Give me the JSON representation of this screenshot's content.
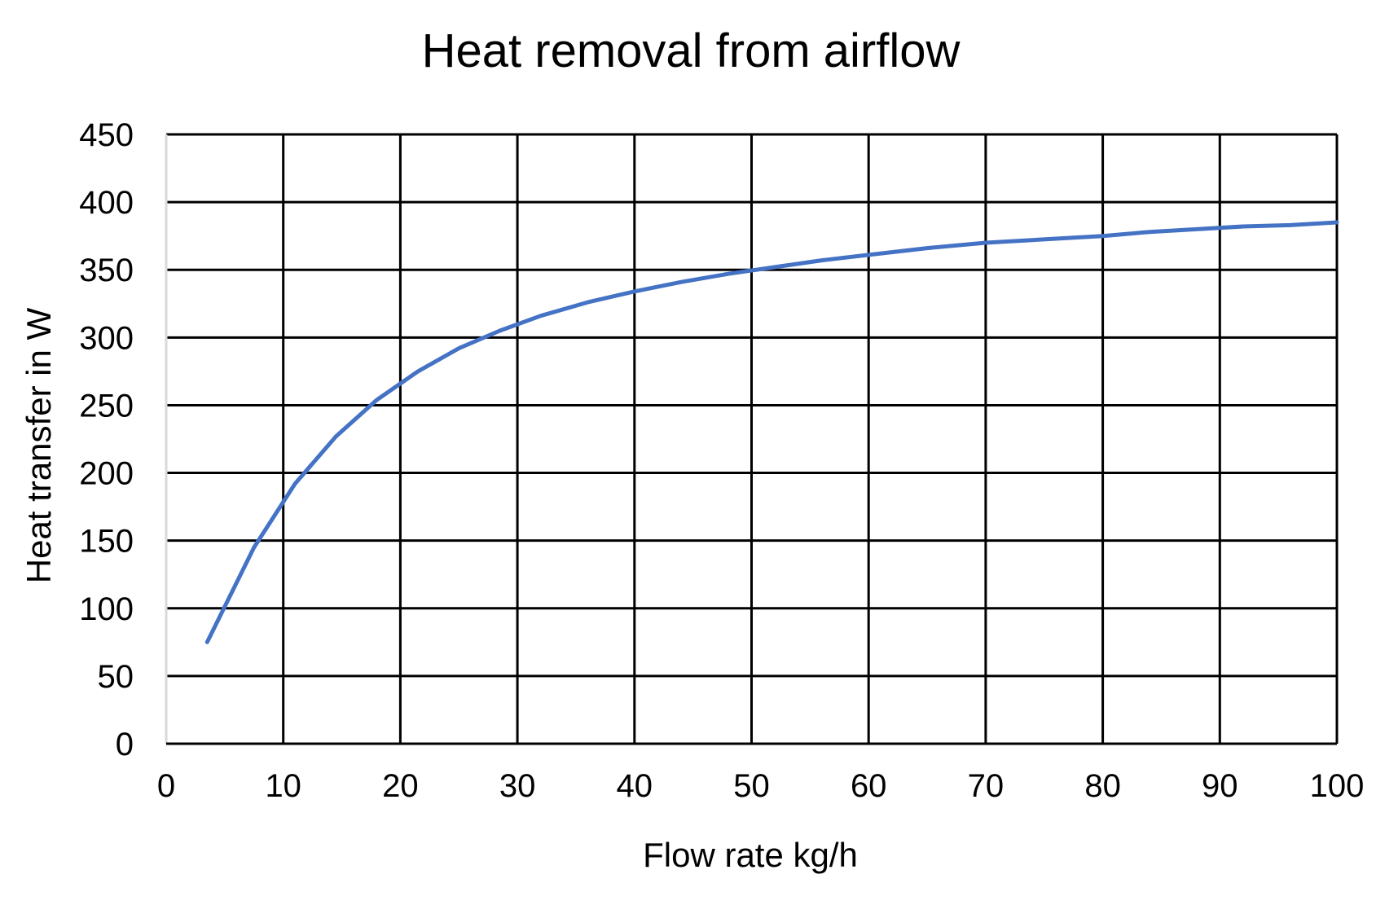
{
  "chart_data": {
    "type": "line",
    "title": "Heat removal from airflow",
    "xlabel": "Flow rate kg/h",
    "ylabel": "Heat transfer in W",
    "xlim": [
      0,
      100
    ],
    "ylim": [
      0,
      450
    ],
    "x_ticks": [
      "0",
      "10",
      "20",
      "30",
      "40",
      "50",
      "60",
      "70",
      "80",
      "90",
      "100"
    ],
    "y_ticks": [
      "0",
      "50",
      "100",
      "150",
      "200",
      "250",
      "300",
      "350",
      "400",
      "450"
    ],
    "grid": true,
    "legend": "none",
    "series": [
      {
        "color": "#4472C4",
        "x": [
          3.5,
          7.5,
          11,
          14.5,
          18,
          21.5,
          25,
          28.5,
          32,
          36,
          40,
          44,
          48,
          52,
          56,
          60,
          65,
          70,
          76,
          80,
          84,
          88,
          92,
          96,
          100
        ],
        "y": [
          75,
          145,
          192,
          227,
          254,
          275,
          292,
          305,
          316,
          326,
          334,
          341,
          347,
          352,
          357,
          361,
          366,
          370,
          373,
          375,
          378,
          380,
          382,
          383,
          385
        ]
      }
    ]
  }
}
